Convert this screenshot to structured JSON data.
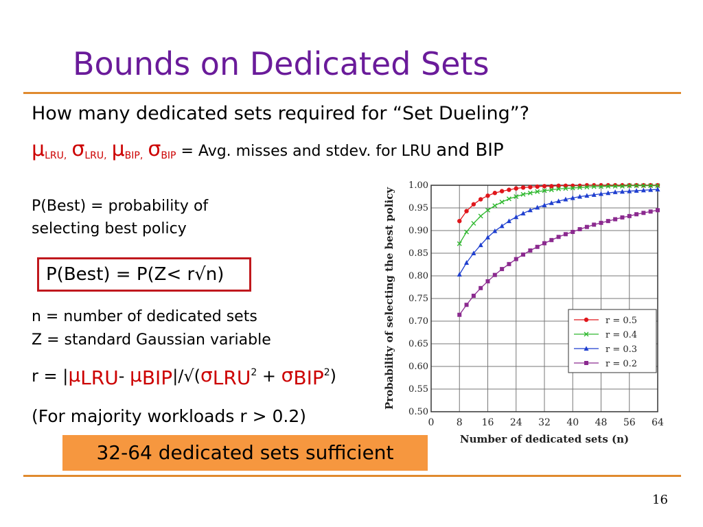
{
  "slide": {
    "title": "Bounds on Dedicated Sets",
    "question": "How many dedicated sets required for “Set Dueling”?",
    "mu": "μ",
    "sigma": "σ",
    "sub_lru_comma": "LRU,",
    "sub_bip_comma": "BIP,",
    "sub_bip": "BIP",
    "sub_lru": "LRU",
    "avg_text": " = Avg. misses and stdev. for LRU ",
    "and_bip": "and BIP",
    "pbest_def_1": "P(Best) = probability of",
    "pbest_def_2": "selecting best policy",
    "pbest_formula": "P(Best) = P(Z< r√n)",
    "n_def": "n = number of dedicated sets",
    "z_def": "Z = standard Gaussian variable",
    "r_prefix": "r = |",
    "r_minus": "- ",
    "r_mid": "|/√(",
    "sq": "2",
    "plus": " + ",
    "close": ")",
    "majority": "(For majority workloads r > 0.2)",
    "sufficient": "32-64 dedicated sets sufficient",
    "page_number": "16"
  },
  "chart_data": {
    "type": "line",
    "xlabel": "Number of dedicated sets (n)",
    "ylabel": "Probability of selecting the best policy",
    "xlim": [
      0,
      64
    ],
    "ylim": [
      0.5,
      1.0
    ],
    "x_ticks": [
      "0",
      "8",
      "16",
      "24",
      "32",
      "40",
      "48",
      "56",
      "64"
    ],
    "y_ticks": [
      "0.50",
      "0.55",
      "0.60",
      "0.65",
      "0.70",
      "0.75",
      "0.80",
      "0.85",
      "0.90",
      "0.95",
      "1.00"
    ],
    "grid": true,
    "legend_position": "bottom-right",
    "x": [
      8,
      10,
      12,
      14,
      16,
      18,
      20,
      22,
      24,
      26,
      28,
      30,
      32,
      34,
      36,
      38,
      40,
      42,
      44,
      46,
      48,
      50,
      52,
      54,
      56,
      58,
      60,
      62,
      64
    ],
    "series": [
      {
        "name": "r = 0.5",
        "color": "#e0161b",
        "marker": "circle",
        "values": [
          0.921,
          0.943,
          0.958,
          0.969,
          0.977,
          0.983,
          0.987,
          0.99,
          0.993,
          0.995,
          0.996,
          0.997,
          0.998,
          0.998,
          0.999,
          0.999,
          0.999,
          0.999,
          1.0,
          1.0,
          1.0,
          1.0,
          1.0,
          1.0,
          1.0,
          1.0,
          1.0,
          1.0,
          1.0
        ]
      },
      {
        "name": "r = 0.4",
        "color": "#2eb82e",
        "marker": "x",
        "values": [
          0.871,
          0.897,
          0.916,
          0.932,
          0.945,
          0.955,
          0.963,
          0.97,
          0.975,
          0.98,
          0.983,
          0.986,
          0.988,
          0.99,
          0.992,
          0.993,
          0.994,
          0.995,
          0.996,
          0.997,
          0.997,
          0.998,
          0.998,
          0.998,
          0.999,
          0.999,
          0.999,
          0.999,
          0.999
        ]
      },
      {
        "name": "r = 0.3",
        "color": "#1f3fcf",
        "marker": "triangle",
        "values": [
          0.803,
          0.829,
          0.85,
          0.868,
          0.885,
          0.899,
          0.91,
          0.921,
          0.93,
          0.938,
          0.945,
          0.951,
          0.956,
          0.961,
          0.965,
          0.969,
          0.972,
          0.975,
          0.977,
          0.979,
          0.981,
          0.983,
          0.985,
          0.986,
          0.987,
          0.988,
          0.989,
          0.99,
          0.991
        ]
      },
      {
        "name": "r = 0.2",
        "color": "#8b2a8f",
        "marker": "square",
        "values": [
          0.714,
          0.736,
          0.756,
          0.773,
          0.788,
          0.802,
          0.815,
          0.826,
          0.837,
          0.847,
          0.856,
          0.864,
          0.872,
          0.879,
          0.886,
          0.892,
          0.897,
          0.903,
          0.908,
          0.913,
          0.917,
          0.921,
          0.925,
          0.929,
          0.932,
          0.936,
          0.939,
          0.942,
          0.945
        ]
      }
    ]
  }
}
